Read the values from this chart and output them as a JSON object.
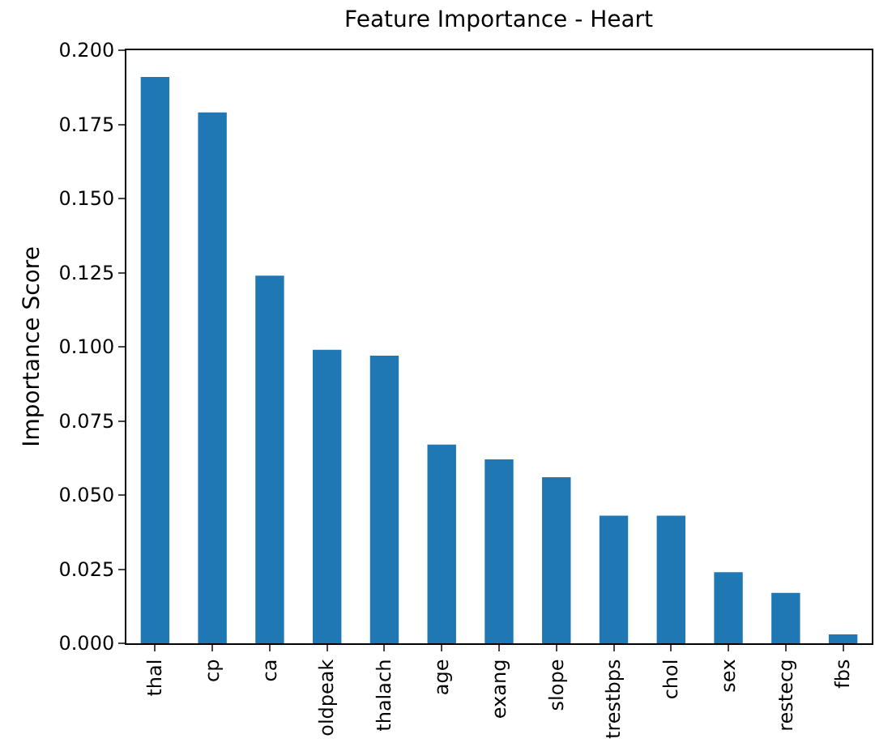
{
  "chart_data": {
    "type": "bar",
    "title": "Feature Importance - Heart",
    "ylabel": "Importance Score",
    "categories": [
      "thal",
      "cp",
      "ca",
      "oldpeak",
      "thalach",
      "age",
      "exang",
      "slope",
      "trestbps",
      "chol",
      "sex",
      "restecg",
      "fbs"
    ],
    "values": [
      0.191,
      0.179,
      0.124,
      0.099,
      0.097,
      0.067,
      0.062,
      0.056,
      0.043,
      0.043,
      0.024,
      0.017,
      0.003
    ],
    "color": "#1f77b4",
    "ylim": [
      0,
      0.2
    ],
    "yticks": [
      {
        "value": 0,
        "label": "0.000"
      },
      {
        "value": 0.025,
        "label": "0.025"
      },
      {
        "value": 0.05,
        "label": "0.050"
      },
      {
        "value": 0.075,
        "label": "0.075"
      },
      {
        "value": 0.1,
        "label": "0.100"
      },
      {
        "value": 0.125,
        "label": "0.125"
      },
      {
        "value": 0.15,
        "label": "0.150"
      },
      {
        "value": 0.175,
        "label": "0.175"
      },
      {
        "value": 0.2,
        "label": "0.200"
      }
    ],
    "grid": false
  }
}
